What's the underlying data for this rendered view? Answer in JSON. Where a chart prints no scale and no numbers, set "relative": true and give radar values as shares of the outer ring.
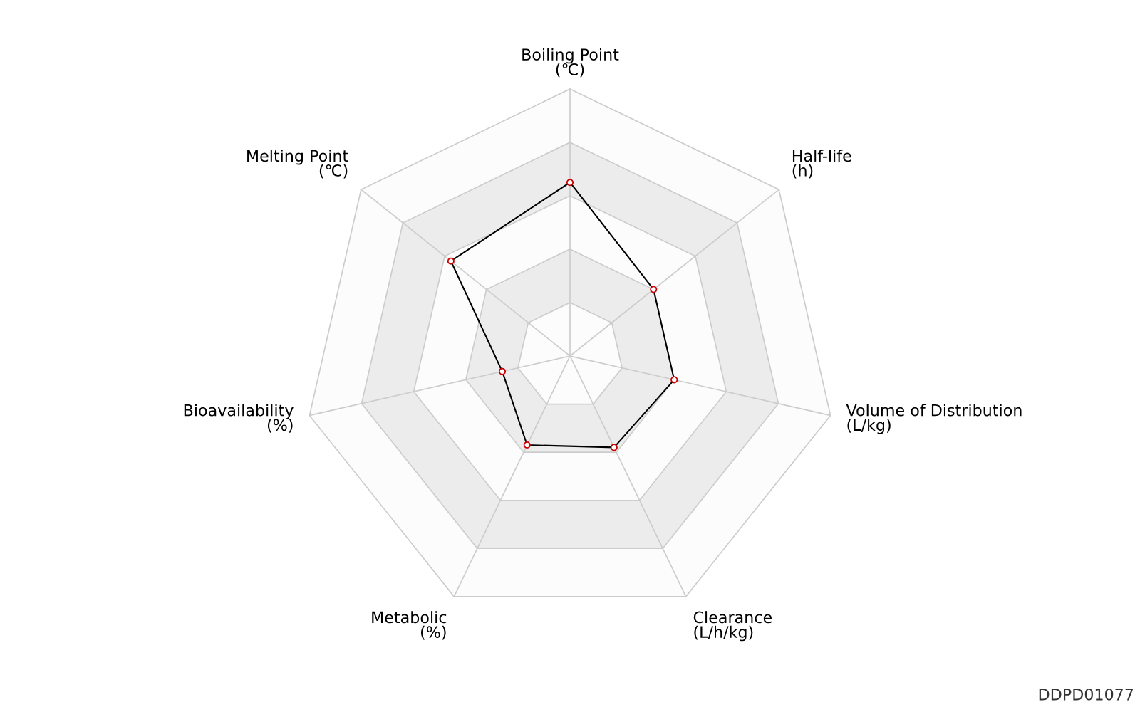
{
  "chart_data": {
    "type": "radar",
    "relative": true,
    "grid": true,
    "marker": "circle",
    "line_style": "solid",
    "categories": [
      "Boiling Point\n(℃)",
      "Half-life\n(h)",
      "Volume of Distribution\n(L/kg)",
      "Clearance\n(L/h/kg)",
      "Metabolic\n(%)",
      "Bioavailability\n(%)",
      "Melting Point\n(℃)"
    ],
    "series": [
      {
        "color": "#000000",
        "values": [
          0.65,
          0.4,
          0.4,
          0.38,
          0.37,
          0.26,
          0.57
        ]
      }
    ],
    "annotations": [
      "DDPD01077"
    ]
  }
}
